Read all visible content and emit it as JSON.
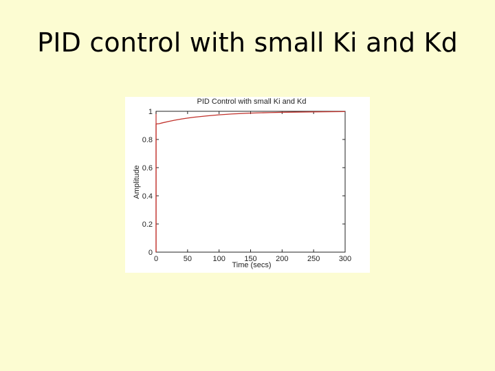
{
  "slide": {
    "title": "PID control with small Ki and Kd"
  },
  "chart_data": {
    "type": "line",
    "title": "PID Control with small Ki and Kd",
    "xlabel": "Time (secs)",
    "ylabel": "Amplitude",
    "xlim": [
      0,
      300
    ],
    "ylim": [
      0,
      1
    ],
    "xticks": [
      0,
      50,
      100,
      150,
      200,
      250,
      300
    ],
    "yticks": [
      0,
      0.2,
      0.4,
      0.6,
      0.8,
      1
    ],
    "ytick_labels": [
      "0",
      "0.2",
      "0.4",
      "0.6",
      "0.8",
      "1"
    ],
    "grid": false,
    "line_color": "#c0302a",
    "series": [
      {
        "x": [
          0,
          0.01,
          5,
          10,
          20,
          30,
          40,
          50,
          60,
          80,
          100,
          120,
          150,
          180,
          200,
          250,
          300
        ],
        "y": [
          0,
          0.91,
          0.912,
          0.918,
          0.928,
          0.937,
          0.945,
          0.952,
          0.958,
          0.967,
          0.975,
          0.981,
          0.987,
          0.991,
          0.993,
          0.996,
          0.998
        ]
      }
    ]
  }
}
